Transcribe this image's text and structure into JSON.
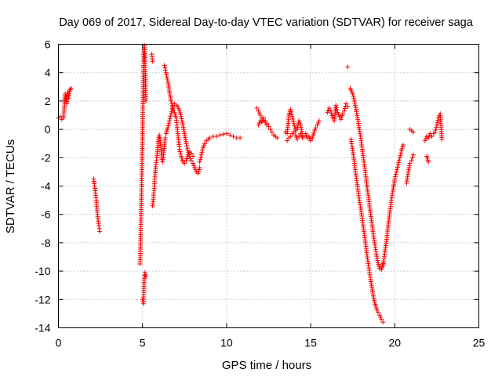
{
  "chart_data": {
    "type": "scatter",
    "title": "Day 069 of 2017, Sidereal Day-to-day VTEC variation (SDTVAR) for receiver saga",
    "xlabel": "GPS time / hours",
    "ylabel": "SDTVAR / TECUs",
    "xlim": [
      0,
      25
    ],
    "ylim": [
      -14,
      6
    ],
    "xticks": [
      0,
      5,
      10,
      15,
      20,
      25
    ],
    "yticks": [
      -14,
      -12,
      -10,
      -8,
      -6,
      -4,
      -2,
      0,
      2,
      4,
      6
    ],
    "grid": true,
    "marker": "+",
    "color": "#ff0000",
    "segments": [
      [
        [
          0.0,
          0.8
        ],
        [
          0.1,
          0.9
        ],
        [
          0.2,
          0.7
        ],
        [
          0.3,
          0.8
        ],
        [
          0.35,
          1.5
        ],
        [
          0.4,
          2.5
        ],
        [
          0.45,
          2.0
        ],
        [
          0.5,
          1.8
        ],
        [
          0.55,
          2.6
        ],
        [
          0.6,
          2.2
        ],
        [
          0.65,
          2.7
        ],
        [
          0.7,
          2.8
        ],
        [
          0.75,
          2.9
        ]
      ],
      [
        [
          2.1,
          -3.5
        ],
        [
          2.15,
          -4.0
        ],
        [
          2.2,
          -4.5
        ],
        [
          2.25,
          -5.0
        ],
        [
          2.3,
          -5.7
        ],
        [
          2.35,
          -6.3
        ],
        [
          2.4,
          -6.8
        ],
        [
          2.45,
          -7.2
        ]
      ],
      [
        [
          4.85,
          -9.5
        ],
        [
          4.88,
          -8.3
        ],
        [
          4.9,
          -7.0
        ],
        [
          4.92,
          -5.8
        ],
        [
          4.94,
          -4.5
        ],
        [
          4.96,
          -3.0
        ],
        [
          4.98,
          -1.5
        ],
        [
          5.0,
          0.0
        ],
        [
          5.02,
          1.5
        ],
        [
          5.04,
          3.0
        ],
        [
          5.06,
          4.5
        ],
        [
          5.08,
          5.6
        ],
        [
          5.12,
          5.9
        ],
        [
          5.15,
          4.5
        ],
        [
          5.18,
          3.5
        ],
        [
          5.2,
          2.0
        ]
      ],
      [
        [
          5.0,
          -12.0
        ],
        [
          5.05,
          -12.3
        ],
        [
          5.08,
          -11.5
        ],
        [
          5.1,
          -10.5
        ],
        [
          5.15,
          -10.1
        ],
        [
          5.2,
          -10.4
        ]
      ],
      [
        [
          5.55,
          5.3
        ],
        [
          5.6,
          4.8
        ]
      ],
      [
        [
          5.6,
          -5.4
        ],
        [
          5.65,
          -4.8
        ],
        [
          5.7,
          -4.0
        ],
        [
          5.75,
          -3.2
        ],
        [
          5.8,
          -2.5
        ],
        [
          5.85,
          -2.0
        ],
        [
          5.9,
          -1.3
        ],
        [
          5.95,
          -0.7
        ],
        [
          6.0,
          -0.4
        ],
        [
          6.05,
          -0.8
        ],
        [
          6.1,
          -1.4
        ],
        [
          6.15,
          -2.1
        ],
        [
          6.2,
          -2.3
        ],
        [
          6.25,
          -1.8
        ],
        [
          6.3,
          -1.2
        ],
        [
          6.35,
          -0.6
        ]
      ],
      [
        [
          6.3,
          4.5
        ],
        [
          6.4,
          4.0
        ],
        [
          6.5,
          3.4
        ],
        [
          6.6,
          2.7
        ],
        [
          6.7,
          2.0
        ],
        [
          6.8,
          1.5
        ],
        [
          6.9,
          1.2
        ],
        [
          7.0,
          0.8
        ],
        [
          7.05,
          0.3
        ],
        [
          7.1,
          -0.3
        ],
        [
          7.15,
          -0.9
        ],
        [
          7.2,
          -1.4
        ],
        [
          7.3,
          -1.9
        ],
        [
          7.4,
          -2.3
        ],
        [
          7.5,
          -2.4
        ],
        [
          7.6,
          -2.2
        ],
        [
          7.7,
          -1.8
        ],
        [
          7.8,
          -1.6
        ],
        [
          7.9,
          -1.7
        ],
        [
          8.0,
          -1.9
        ]
      ],
      [
        [
          6.4,
          -0.3
        ],
        [
          6.5,
          0.1
        ],
        [
          6.6,
          0.6
        ],
        [
          6.7,
          1.1
        ],
        [
          6.8,
          1.6
        ],
        [
          6.9,
          1.8
        ],
        [
          7.0,
          1.7
        ],
        [
          7.1,
          1.6
        ],
        [
          7.2,
          1.3
        ],
        [
          7.3,
          0.9
        ],
        [
          7.4,
          0.3
        ],
        [
          7.5,
          -0.3
        ],
        [
          7.6,
          -1.0
        ],
        [
          7.7,
          -1.5
        ],
        [
          7.8,
          -1.9
        ],
        [
          7.9,
          -2.2
        ],
        [
          8.0,
          -2.4
        ],
        [
          8.1,
          -2.7
        ],
        [
          8.2,
          -3.0
        ],
        [
          8.3,
          -3.1
        ],
        [
          8.4,
          -2.7
        ]
      ],
      [
        [
          8.4,
          -2.3
        ],
        [
          8.5,
          -1.8
        ],
        [
          8.6,
          -1.3
        ],
        [
          8.7,
          -1.0
        ],
        [
          8.8,
          -0.8
        ],
        [
          8.9,
          -0.7
        ],
        [
          9.0,
          -0.6
        ],
        [
          9.2,
          -0.5
        ],
        [
          9.4,
          -0.5
        ],
        [
          9.6,
          -0.4
        ],
        [
          9.8,
          -0.35
        ],
        [
          10.0,
          -0.3
        ],
        [
          10.2,
          -0.4
        ],
        [
          10.4,
          -0.5
        ],
        [
          10.6,
          -0.6
        ],
        [
          10.8,
          -0.6
        ]
      ],
      [
        [
          11.8,
          1.5
        ],
        [
          11.9,
          1.3
        ],
        [
          12.0,
          1.0
        ],
        [
          12.1,
          0.8
        ],
        [
          12.2,
          0.6
        ],
        [
          12.3,
          0.5
        ],
        [
          12.4,
          0.3
        ],
        [
          12.5,
          0.2
        ],
        [
          12.6,
          0.0
        ],
        [
          12.7,
          -0.2
        ],
        [
          12.8,
          -0.4
        ],
        [
          12.9,
          -0.5
        ],
        [
          13.0,
          -0.6
        ]
      ],
      [
        [
          11.9,
          0.3
        ],
        [
          12.0,
          0.6
        ],
        [
          12.1,
          0.5
        ],
        [
          12.2,
          0.8
        ],
        [
          12.3,
          0.6
        ],
        [
          12.4,
          0.4
        ],
        [
          12.5,
          0.2
        ]
      ],
      [
        [
          13.5,
          -0.2
        ],
        [
          13.6,
          -0.3
        ],
        [
          13.7,
          1.0
        ],
        [
          13.8,
          1.4
        ],
        [
          13.9,
          0.9
        ],
        [
          14.0,
          0.4
        ],
        [
          14.1,
          -0.1
        ],
        [
          14.2,
          0.0
        ],
        [
          14.3,
          0.6
        ],
        [
          14.4,
          0.3
        ],
        [
          14.5,
          -0.3
        ],
        [
          14.6,
          -0.5
        ],
        [
          14.7,
          -0.3
        ],
        [
          14.8,
          -0.6
        ],
        [
          14.9,
          -0.5
        ],
        [
          15.0,
          -0.8
        ],
        [
          15.1,
          -0.6
        ],
        [
          15.2,
          -0.2
        ],
        [
          15.3,
          0.1
        ],
        [
          15.4,
          0.3
        ],
        [
          15.5,
          0.6
        ]
      ],
      [
        [
          13.6,
          -0.8
        ],
        [
          13.7,
          -0.6
        ],
        [
          13.8,
          -0.5
        ],
        [
          13.9,
          -0.3
        ],
        [
          14.0,
          -0.2
        ],
        [
          14.1,
          -0.4
        ],
        [
          14.2,
          -0.7
        ],
        [
          14.3,
          -0.5
        ],
        [
          14.4,
          -0.3
        ],
        [
          14.5,
          -0.6
        ]
      ],
      [
        [
          16.0,
          1.2
        ],
        [
          16.1,
          1.5
        ],
        [
          16.2,
          1.3
        ],
        [
          16.3,
          0.8
        ],
        [
          16.4,
          0.6
        ],
        [
          16.5,
          1.7
        ],
        [
          16.6,
          1.2
        ],
        [
          16.7,
          0.9
        ],
        [
          16.8,
          0.7
        ],
        [
          16.9,
          1.1
        ],
        [
          17.0,
          1.3
        ],
        [
          17.1,
          1.8
        ],
        [
          17.2,
          1.6
        ]
      ],
      [
        [
          17.2,
          4.4
        ]
      ],
      [
        [
          17.35,
          2.9
        ],
        [
          17.5,
          2.5
        ],
        [
          17.6,
          2.0
        ],
        [
          17.7,
          1.4
        ],
        [
          17.8,
          0.7
        ],
        [
          17.9,
          0.0
        ],
        [
          18.0,
          -0.8
        ],
        [
          18.1,
          -1.7
        ],
        [
          18.2,
          -2.6
        ],
        [
          18.3,
          -3.5
        ],
        [
          18.4,
          -4.5
        ],
        [
          18.5,
          -5.4
        ],
        [
          18.6,
          -6.3
        ],
        [
          18.7,
          -7.2
        ],
        [
          18.8,
          -8.0
        ],
        [
          18.9,
          -8.8
        ],
        [
          19.0,
          -9.4
        ],
        [
          19.1,
          -9.8
        ],
        [
          19.2,
          -9.9
        ],
        [
          19.3,
          -9.5
        ]
      ],
      [
        [
          17.4,
          -0.7
        ],
        [
          17.5,
          -1.5
        ],
        [
          17.6,
          -2.4
        ],
        [
          17.7,
          -3.3
        ],
        [
          17.8,
          -4.2
        ],
        [
          17.9,
          -5.0
        ],
        [
          18.0,
          -5.8
        ],
        [
          18.1,
          -6.6
        ],
        [
          18.2,
          -7.5
        ],
        [
          18.3,
          -8.4
        ],
        [
          18.4,
          -9.3
        ],
        [
          18.5,
          -10.1
        ],
        [
          18.6,
          -10.9
        ],
        [
          18.7,
          -11.6
        ],
        [
          18.8,
          -12.2
        ],
        [
          18.9,
          -12.6
        ],
        [
          19.0,
          -12.9
        ],
        [
          19.1,
          -13.1
        ],
        [
          19.2,
          -13.4
        ],
        [
          19.3,
          -13.6
        ]
      ],
      [
        [
          19.3,
          -9.6
        ],
        [
          19.4,
          -8.8
        ],
        [
          19.5,
          -7.9
        ],
        [
          19.6,
          -6.9
        ],
        [
          19.7,
          -5.9
        ],
        [
          19.8,
          -5.0
        ],
        [
          19.9,
          -4.2
        ],
        [
          20.0,
          -3.5
        ],
        [
          20.1,
          -3.0
        ],
        [
          20.2,
          -2.5
        ],
        [
          20.3,
          -2.0
        ],
        [
          20.4,
          -1.5
        ],
        [
          20.5,
          -1.1
        ]
      ],
      [
        [
          20.7,
          -3.8
        ],
        [
          20.8,
          -3.0
        ],
        [
          20.9,
          -2.4
        ],
        [
          21.0,
          -2.2
        ],
        [
          21.05,
          -2.0
        ],
        [
          21.1,
          -1.8
        ]
      ],
      [
        [
          20.9,
          0.0
        ],
        [
          21.0,
          -0.1
        ],
        [
          21.1,
          -0.2
        ]
      ],
      [
        [
          21.8,
          -0.8
        ],
        [
          21.9,
          -0.5
        ],
        [
          22.0,
          -0.6
        ],
        [
          22.1,
          -0.3
        ],
        [
          22.2,
          -0.5
        ],
        [
          22.3,
          -0.3
        ],
        [
          22.4,
          -0.2
        ],
        [
          22.5,
          0.3
        ],
        [
          22.6,
          0.8
        ],
        [
          22.7,
          1.1
        ],
        [
          22.8,
          -0.7
        ]
      ],
      [
        [
          21.9,
          -1.9
        ],
        [
          22.0,
          -2.3
        ]
      ]
    ]
  }
}
